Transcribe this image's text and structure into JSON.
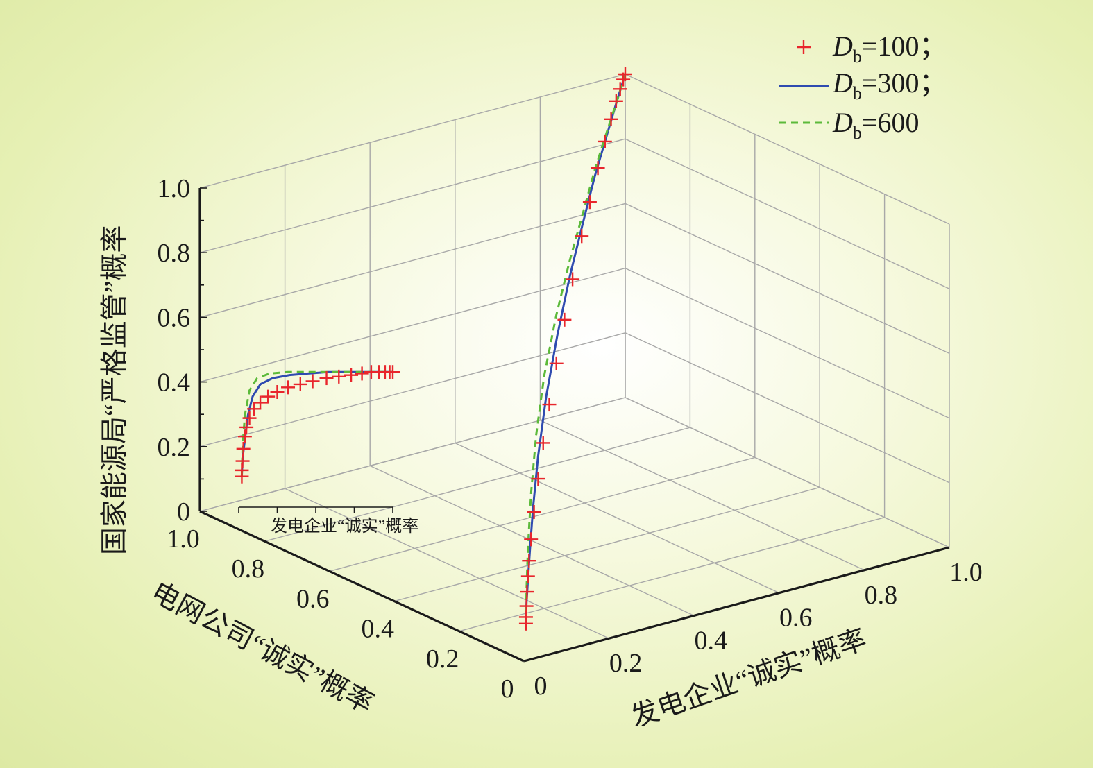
{
  "chart_data": {
    "type": "line",
    "projection": "3d",
    "axes": {
      "x": {
        "label": "发电企业“诚实”概率",
        "range": [
          0,
          1
        ],
        "ticks": [
          "0",
          "0.2",
          "0.4",
          "0.6",
          "0.8",
          "1.0"
        ]
      },
      "y": {
        "label": "电网公司“诚实”概率",
        "range": [
          0,
          1
        ],
        "ticks": [
          "0",
          "0.2",
          "0.4",
          "0.6",
          "0.8",
          "1.0"
        ]
      },
      "z": {
        "label": "国家能源局“严格监管”概率",
        "range": [
          0,
          1
        ],
        "ticks": [
          "0",
          "0.2",
          "0.4",
          "0.6",
          "0.8",
          "1.0"
        ]
      }
    },
    "inset_label": "发电企业“诚实”概率",
    "grid": true,
    "legend": {
      "position": "top-right",
      "entries": [
        {
          "symbol": "D",
          "subscript": "b",
          "value": "=100；",
          "color": "#e8262c",
          "style": "plus"
        },
        {
          "symbol": "D",
          "subscript": "b",
          "value": "=300；",
          "color": "#2f4bb0",
          "style": "solid"
        },
        {
          "symbol": "D",
          "subscript": "b",
          "value": "=600",
          "color": "#5cba3a",
          "style": "dashed"
        }
      ]
    },
    "series": [
      {
        "color": "#2f4bb0",
        "style": "solid",
        "points": [
          [
            0.02,
            0.02,
            0.1
          ],
          [
            0.025,
            0.025,
            0.16
          ],
          [
            0.04,
            0.04,
            0.22
          ],
          [
            0.06,
            0.06,
            0.3
          ],
          [
            0.09,
            0.09,
            0.4
          ],
          [
            0.14,
            0.14,
            0.52
          ],
          [
            0.22,
            0.22,
            0.64
          ],
          [
            0.33,
            0.33,
            0.74
          ],
          [
            0.45,
            0.45,
            0.82
          ],
          [
            0.58,
            0.58,
            0.88
          ],
          [
            0.7,
            0.7,
            0.93
          ],
          [
            0.82,
            0.82,
            0.96
          ],
          [
            0.92,
            0.92,
            0.985
          ],
          [
            1.0,
            1.0,
            1.0
          ]
        ]
      },
      {
        "color": "#5cba3a",
        "style": "dashed",
        "points": [
          [
            0.02,
            0.02,
            0.1
          ],
          [
            0.025,
            0.025,
            0.2
          ],
          [
            0.04,
            0.04,
            0.32
          ],
          [
            0.07,
            0.07,
            0.46
          ],
          [
            0.12,
            0.12,
            0.6
          ],
          [
            0.2,
            0.2,
            0.72
          ],
          [
            0.32,
            0.32,
            0.81
          ],
          [
            0.45,
            0.45,
            0.87
          ],
          [
            0.58,
            0.58,
            0.91
          ],
          [
            0.7,
            0.7,
            0.95
          ],
          [
            0.82,
            0.82,
            0.97
          ],
          [
            0.92,
            0.92,
            0.985
          ],
          [
            1.0,
            1.0,
            1.0
          ]
        ]
      },
      {
        "color": "#e8262c",
        "style": "plus",
        "points": [
          [
            0.02,
            0.02,
            0.1
          ],
          [
            0.02,
            0.02,
            0.12
          ],
          [
            0.025,
            0.025,
            0.15
          ],
          [
            0.03,
            0.03,
            0.19
          ],
          [
            0.04,
            0.04,
            0.23
          ],
          [
            0.05,
            0.05,
            0.27
          ],
          [
            0.07,
            0.07,
            0.32
          ],
          [
            0.1,
            0.1,
            0.38
          ],
          [
            0.14,
            0.14,
            0.45
          ],
          [
            0.19,
            0.19,
            0.52
          ],
          [
            0.25,
            0.25,
            0.59
          ],
          [
            0.32,
            0.32,
            0.66
          ],
          [
            0.4,
            0.4,
            0.73
          ],
          [
            0.48,
            0.48,
            0.79
          ],
          [
            0.57,
            0.57,
            0.85
          ],
          [
            0.65,
            0.65,
            0.89
          ],
          [
            0.73,
            0.73,
            0.93
          ],
          [
            0.8,
            0.8,
            0.955
          ],
          [
            0.86,
            0.86,
            0.975
          ],
          [
            0.91,
            0.91,
            0.99
          ],
          [
            0.95,
            0.95,
            0.995
          ],
          [
            0.98,
            0.98,
            1.0
          ],
          [
            1.0,
            1.0,
            1.0
          ]
        ]
      }
    ],
    "projections_on_wall": {
      "wall": "y=1",
      "series": [
        {
          "color": "#2f4bb0",
          "style": "solid",
          "points": [
            [
              0.02,
              0.1
            ],
            [
              0.025,
              0.16
            ],
            [
              0.04,
              0.22
            ],
            [
              0.06,
              0.3
            ],
            [
              0.09,
              0.36
            ],
            [
              0.14,
              0.4
            ],
            [
              0.22,
              0.42
            ],
            [
              0.33,
              0.43
            ],
            [
              0.45,
              0.435
            ],
            [
              0.58,
              0.44
            ],
            [
              0.7,
              0.44
            ],
            [
              0.82,
              0.44
            ],
            [
              0.92,
              0.44
            ],
            [
              1.0,
              0.44
            ]
          ]
        },
        {
          "color": "#5cba3a",
          "style": "dashed",
          "points": [
            [
              0.02,
              0.1
            ],
            [
              0.025,
              0.2
            ],
            [
              0.04,
              0.3
            ],
            [
              0.07,
              0.38
            ],
            [
              0.12,
              0.42
            ],
            [
              0.2,
              0.435
            ],
            [
              0.32,
              0.44
            ],
            [
              0.45,
              0.44
            ],
            [
              0.58,
              0.44
            ],
            [
              0.7,
              0.44
            ],
            [
              0.82,
              0.44
            ],
            [
              0.92,
              0.44
            ],
            [
              1.0,
              0.44
            ]
          ]
        },
        {
          "color": "#e8262c",
          "style": "plus",
          "points": [
            [
              0.02,
              0.1
            ],
            [
              0.02,
              0.12
            ],
            [
              0.025,
              0.15
            ],
            [
              0.03,
              0.19
            ],
            [
              0.04,
              0.23
            ],
            [
              0.05,
              0.26
            ],
            [
              0.07,
              0.29
            ],
            [
              0.1,
              0.32
            ],
            [
              0.14,
              0.34
            ],
            [
              0.19,
              0.36
            ],
            [
              0.25,
              0.375
            ],
            [
              0.32,
              0.39
            ],
            [
              0.4,
              0.4
            ],
            [
              0.48,
              0.41
            ],
            [
              0.57,
              0.42
            ],
            [
              0.65,
              0.425
            ],
            [
              0.73,
              0.43
            ],
            [
              0.8,
              0.435
            ],
            [
              0.86,
              0.44
            ],
            [
              0.91,
              0.44
            ],
            [
              0.95,
              0.44
            ],
            [
              0.98,
              0.44
            ],
            [
              1.0,
              0.44
            ]
          ]
        }
      ]
    }
  }
}
